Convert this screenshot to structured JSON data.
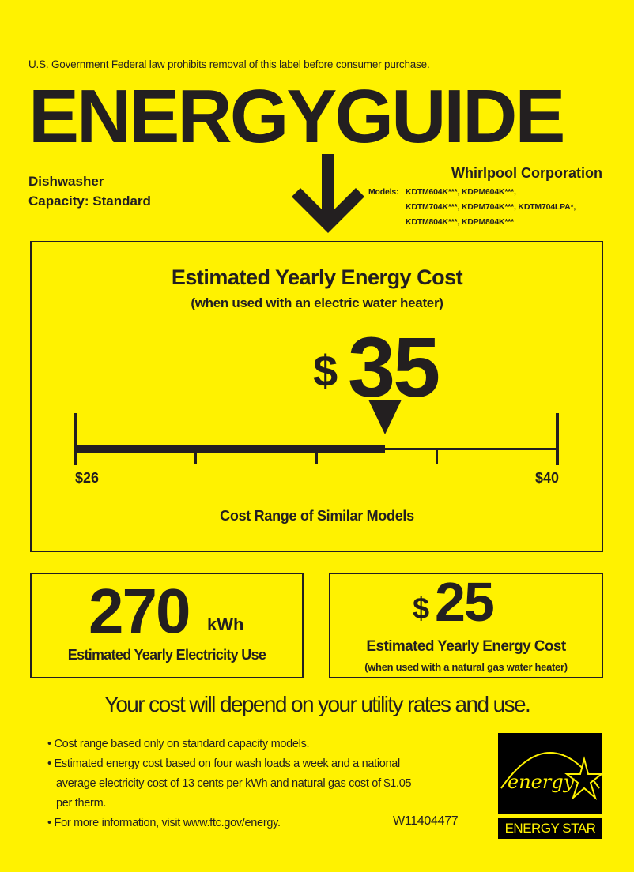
{
  "header": {
    "notice": "U.S. Government  Federal law prohibits removal of this label before consumer purchase.",
    "logo_text": "ENERGYGUIDE",
    "appliance": "Dishwasher",
    "capacity": "Capacity: Standard",
    "manufacturer": "Whirlpool Corporation",
    "models_label": "Models:",
    "models_lines": [
      "KDTM604K***, KDPM604K***,",
      "KDTM704K***, KDPM704K***, KDTM704LPA*,",
      "KDTM804K***, KDPM804K***"
    ]
  },
  "main": {
    "title": "Estimated Yearly Energy Cost",
    "subtitle": "(when used with an electric water heater)",
    "currency": "$",
    "cost": "35",
    "range_min": "$26",
    "range_max": "$40",
    "range_label": "Cost Range of Similar Models",
    "scale": {
      "min": 26,
      "max": 40,
      "value": 35
    }
  },
  "electricity": {
    "value": "270",
    "unit": "kWh",
    "label": "Estimated Yearly Electricity Use"
  },
  "gas": {
    "currency": "$",
    "value": "25",
    "label": "Estimated Yearly Energy Cost",
    "sublabel": "(when used with a natural gas water heater)"
  },
  "footer": {
    "headline": "Your cost will depend on your utility rates and use.",
    "bullets": [
      "Cost range based only on standard capacity models.",
      "Estimated energy cost based on four wash loads a week and a national",
      "average electricity cost of 13 cents per kWh and natural gas cost of $1.05",
      "per therm.",
      "For more information, visit www.ftc.gov/energy."
    ],
    "label_code": "W11404477",
    "energy_star_script": "energy",
    "energy_star_text": "ENERGY STAR"
  },
  "colors": {
    "background": "#fff200",
    "ink": "#231f20"
  }
}
